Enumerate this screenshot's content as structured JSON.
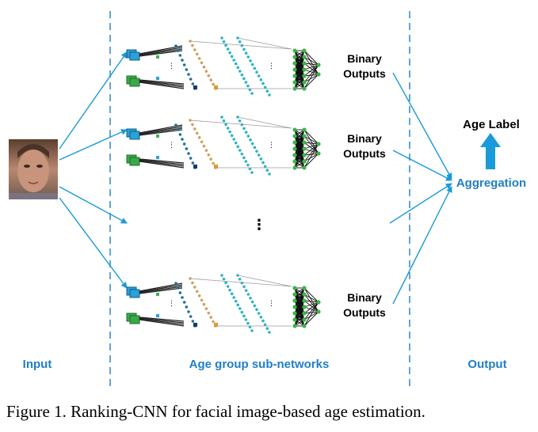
{
  "columns": {
    "input": "Input",
    "networks": "Age group sub-networks",
    "output": "Output"
  },
  "subnetworks": [
    {
      "label_line1": "Binary",
      "label_line2": "Outputs"
    },
    {
      "label_line1": "Binary",
      "label_line2": "Outputs"
    },
    {
      "label_line1": "Binary",
      "label_line2": "Outputs"
    }
  ],
  "ellipsis": "⋮",
  "aggregation": "Aggregation",
  "age_label": "Age Label",
  "caption": "Figure 1. Ranking-CNN for facial image-based age estimation.",
  "colors": {
    "arrow_blue": "#1a9ad8",
    "label_blue": "#1f7ec8",
    "divider": "#3c8ed0",
    "teal": "#2fb3c2",
    "green": "#3eb44a"
  }
}
